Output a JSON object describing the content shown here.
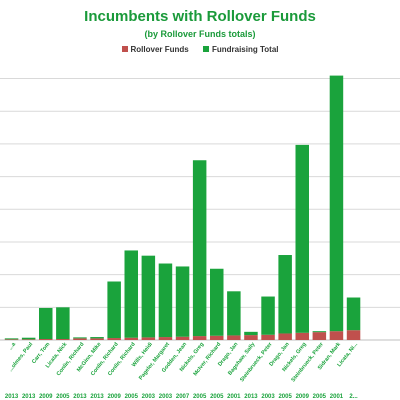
{
  "chart_data": {
    "type": "bar",
    "stacked": true,
    "title": "Incumbents with Rollover Funds",
    "subtitle": "(by Rollover Funds totals)",
    "legend_position": "top",
    "grid": true,
    "ylim": [
      0,
      8.2
    ],
    "categories": [
      {
        "name": "...a",
        "year": "2013"
      },
      {
        "name": "...olmes, Paul",
        "year": "2013"
      },
      {
        "name": "Carr, Tom",
        "year": "2009"
      },
      {
        "name": "Licata, Nick",
        "year": "2005"
      },
      {
        "name": "Conlin, Richard",
        "year": "2013"
      },
      {
        "name": "McGinn, Mike",
        "year": "2013"
      },
      {
        "name": "Conlin, Richard",
        "year": "2009"
      },
      {
        "name": "Conlin, Richard",
        "year": "2005"
      },
      {
        "name": "Wills, Heidi",
        "year": "2003"
      },
      {
        "name": "Pageler, Margaret",
        "year": "2003"
      },
      {
        "name": "Godden, Jean",
        "year": "2007"
      },
      {
        "name": "Nickels, Greg",
        "year": "2005"
      },
      {
        "name": "McIver, Richard",
        "year": "2005"
      },
      {
        "name": "Drago, Jan",
        "year": "2001"
      },
      {
        "name": "Bagshaw, Sally",
        "year": "2013"
      },
      {
        "name": "Steinbrueck, Peter",
        "year": "2003"
      },
      {
        "name": "Drago, Jan",
        "year": "2005"
      },
      {
        "name": "Nickels, Greg",
        "year": "2009"
      },
      {
        "name": "Steinbrueck, Peter",
        "year": "2005"
      },
      {
        "name": "Sidran, Mark",
        "year": "2001"
      },
      {
        "name": "Licata, Ni...",
        "year": "2..."
      }
    ],
    "series": [
      {
        "name": "Rollover Funds",
        "color": "#c0504d",
        "values": [
          0.02,
          0.02,
          0.03,
          0.03,
          0.05,
          0.05,
          0.06,
          0.07,
          0.08,
          0.09,
          0.1,
          0.12,
          0.13,
          0.14,
          0.15,
          0.16,
          0.2,
          0.22,
          0.24,
          0.27,
          0.3
        ]
      },
      {
        "name": "Fundraising Total",
        "color": "#1aa33c",
        "values": [
          0.03,
          0.05,
          0.95,
          0.97,
          0.03,
          0.04,
          1.73,
          2.67,
          2.5,
          2.25,
          2.15,
          5.38,
          2.05,
          1.35,
          0.1,
          1.17,
          2.4,
          5.75,
          0.03,
          7.82,
          1.0
        ]
      }
    ]
  }
}
